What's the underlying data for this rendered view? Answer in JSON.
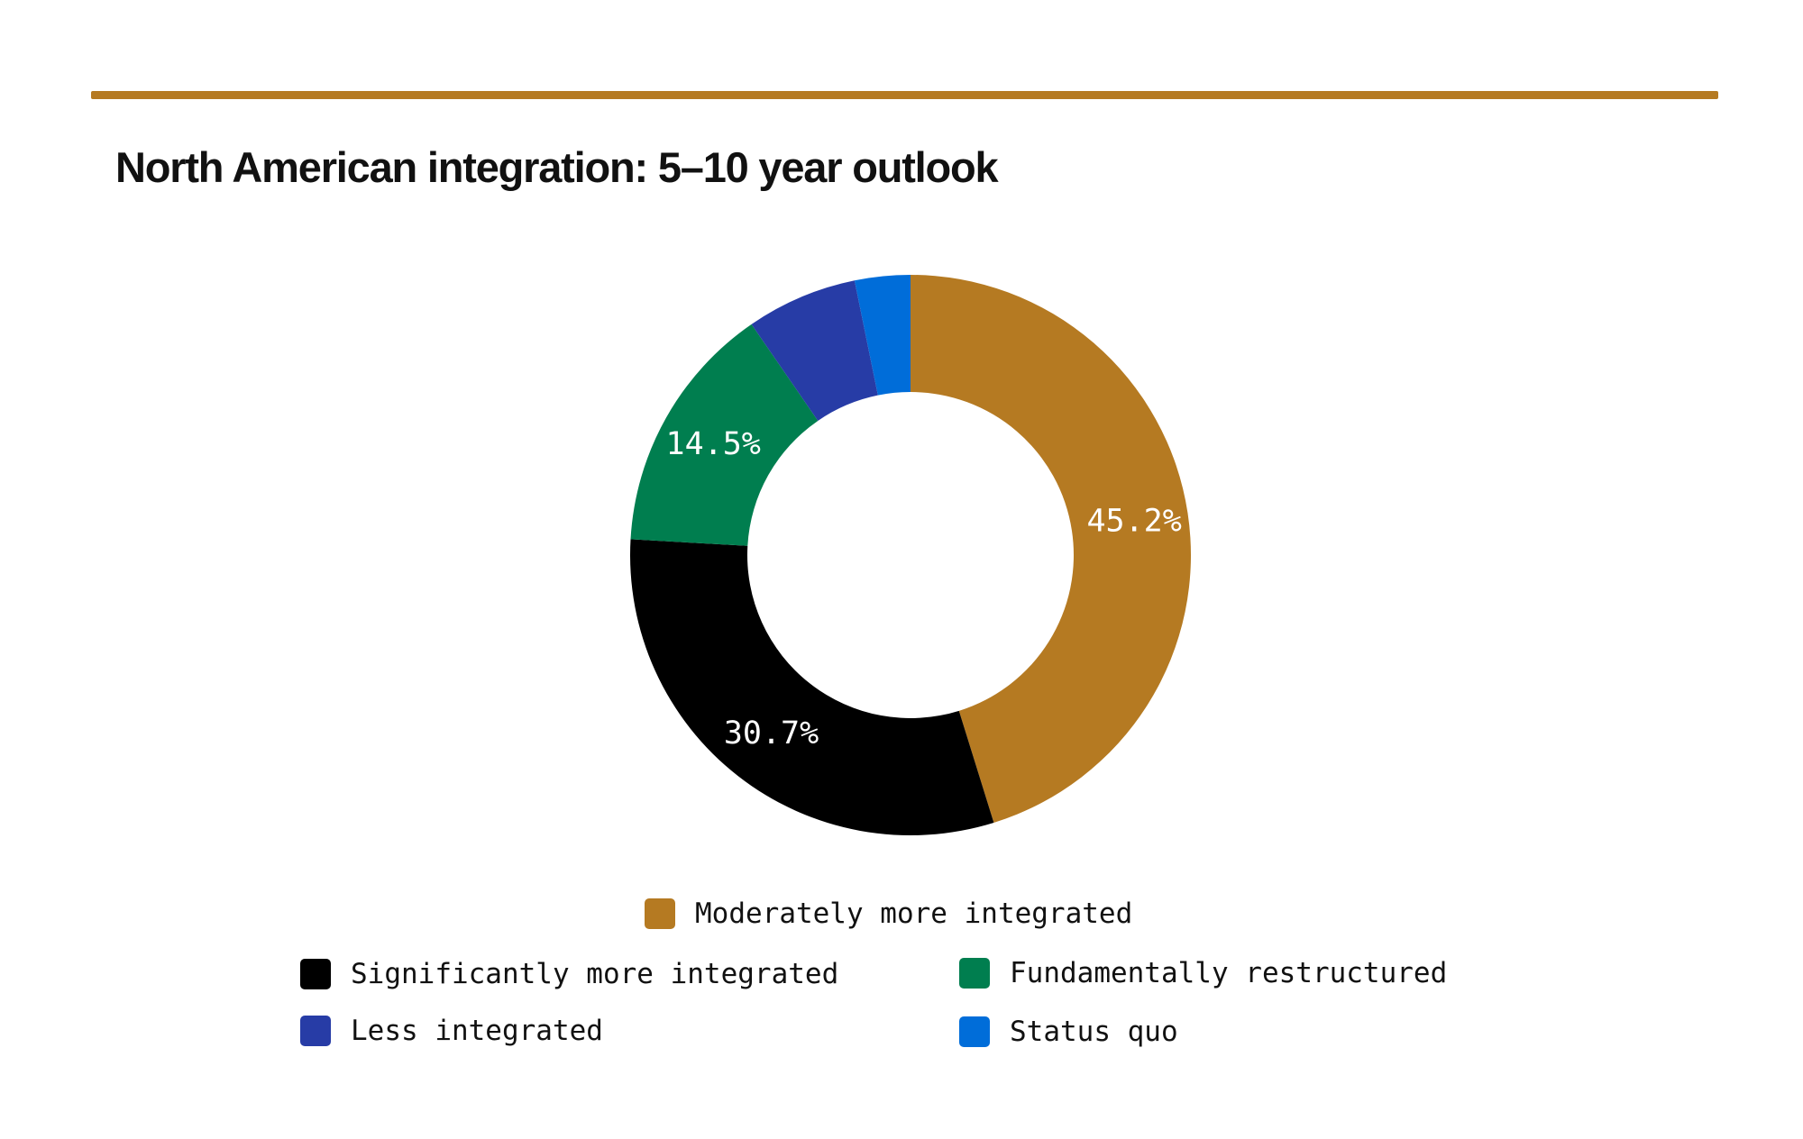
{
  "title": "North American integration: 5–10 year outlook",
  "colors": {
    "rule": "#b57a22",
    "moderately": "#b57a22",
    "significantly": "#000000",
    "fundamentally": "#007e4f",
    "less": "#273ca6",
    "status_quo": "#006dd9"
  },
  "chart_data": {
    "type": "pie",
    "variant": "donut",
    "start": "12 o'clock, clockwise",
    "slices": [
      {
        "name": "Moderately more integrated",
        "value": 45.2,
        "label": "45.2%",
        "color": "#b57a22"
      },
      {
        "name": "Significantly more integrated",
        "value": 30.7,
        "label": "30.7%",
        "color": "#000000"
      },
      {
        "name": "Fundamentally restructured",
        "value": 14.5,
        "label": "14.5%",
        "color": "#007e4f"
      },
      {
        "name": "Less integrated",
        "value": 6.4,
        "label": "",
        "color": "#273ca6"
      },
      {
        "name": "Status quo",
        "value": 3.2,
        "label": "",
        "color": "#006dd9"
      }
    ],
    "legend_position": "bottom"
  },
  "legend": [
    {
      "label": "Moderately more integrated",
      "color": "#b57a22"
    },
    {
      "label": "Significantly more integrated",
      "color": "#000000"
    },
    {
      "label": "Fundamentally restructured",
      "color": "#007e4f"
    },
    {
      "label": "Less integrated",
      "color": "#273ca6"
    },
    {
      "label": "Status quo",
      "color": "#006dd9"
    }
  ]
}
